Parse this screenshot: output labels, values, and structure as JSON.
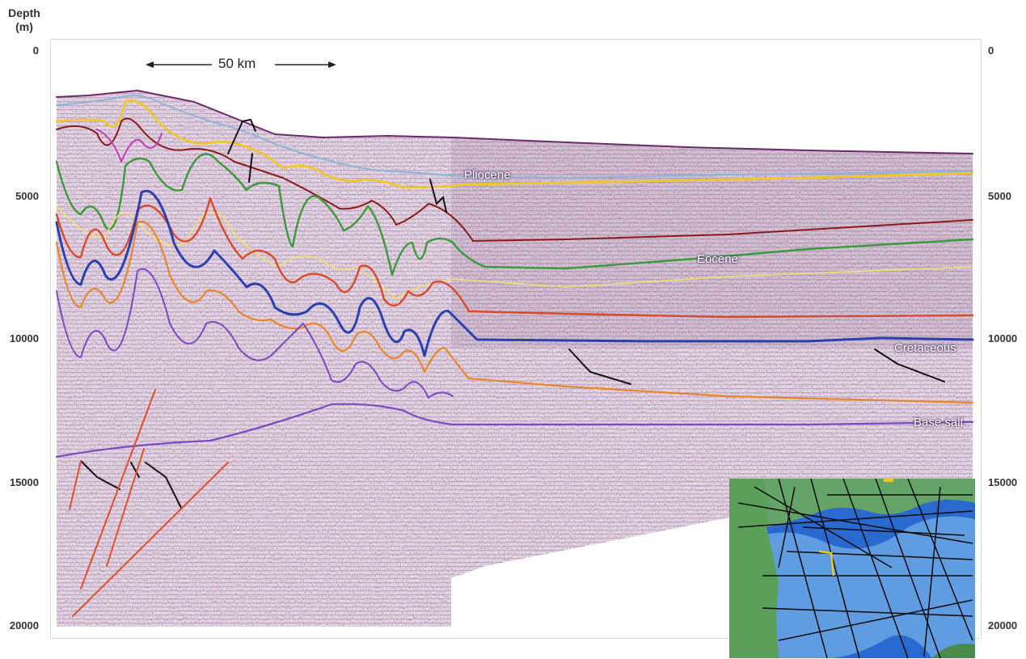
{
  "axis": {
    "label_line1": "Depth",
    "label_line2": "(m)",
    "ticks": [
      "0",
      "5000",
      "10000",
      "15000",
      "20000"
    ]
  },
  "scale_bar": {
    "label": "50 km"
  },
  "horizon_labels": {
    "pliocene": "Pliocene",
    "eocene": "Eocene",
    "cretaceous": "Cretaceous",
    "base_salt": "Base salt"
  },
  "colors": {
    "seismic_bg": "#e8dce6",
    "seismic_dark": "#5a3a66",
    "horizon_light_blue": "#8fb4d8",
    "horizon_yellow": "#f2c81e",
    "horizon_magenta": "#c040b0",
    "horizon_green": "#3a9a3a",
    "horizon_red": "#d84a2a",
    "horizon_blue": "#2a40b0",
    "horizon_orange": "#e8862a",
    "horizon_purple": "#7a4ac0",
    "horizon_maroon": "#7a1a1a",
    "horizon_pale_yellow": "#f0e070",
    "fault_black": "#111111",
    "fault_orange": "#e0502a",
    "inset_deep": "#2a6ad0",
    "inset_shallow": "#8ac4ec",
    "inset_land": "#5aa05a"
  }
}
